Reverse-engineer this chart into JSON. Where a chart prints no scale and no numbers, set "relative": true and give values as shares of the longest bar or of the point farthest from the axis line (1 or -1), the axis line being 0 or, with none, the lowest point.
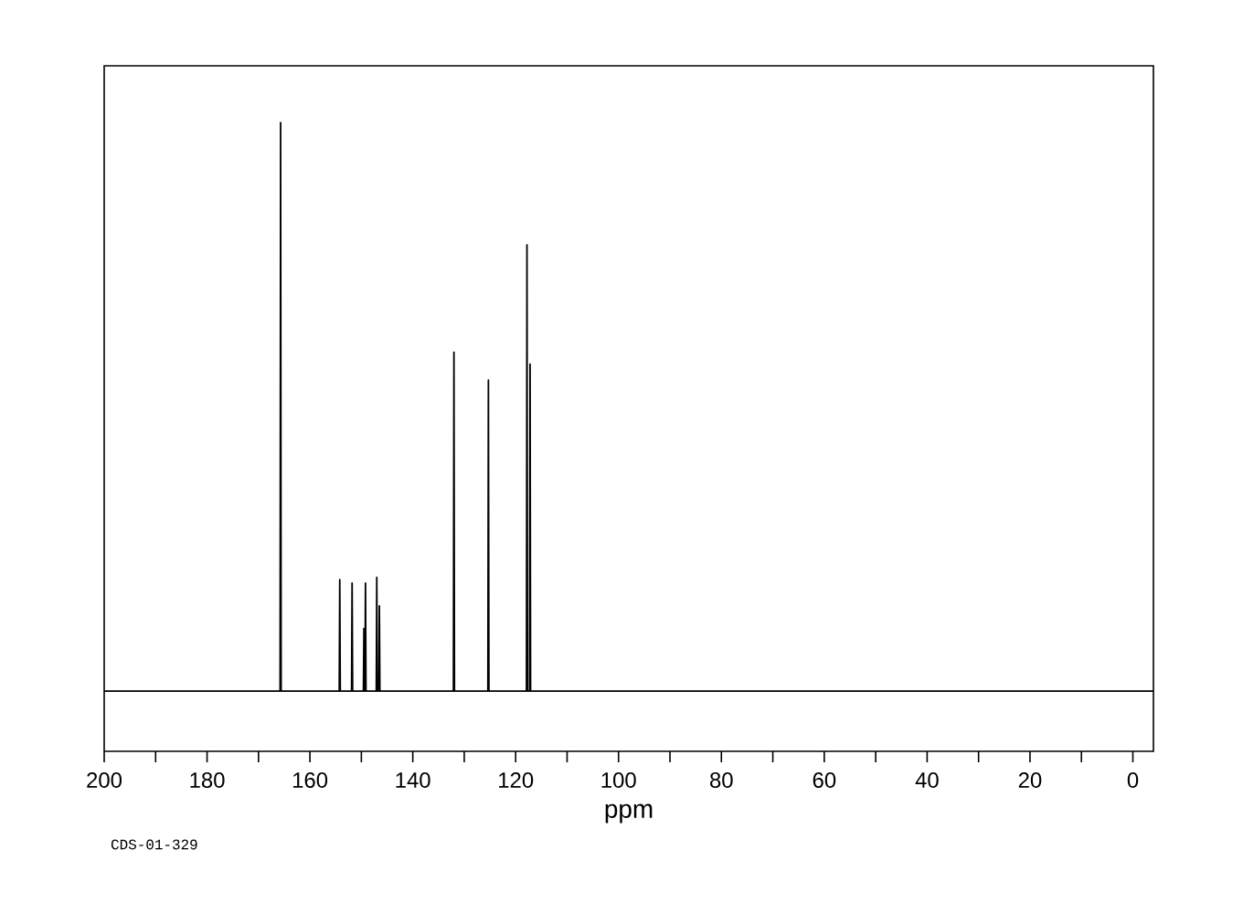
{
  "chart_data": {
    "type": "line",
    "relative": true,
    "xlabel": "ppm",
    "annotations": [
      "CDS-01-329"
    ],
    "tick_labels": "x",
    "color": "#000000",
    "xlim": [
      200,
      -4
    ],
    "xticks": [
      200,
      180,
      160,
      140,
      120,
      100,
      80,
      60,
      40,
      20,
      0
    ],
    "x": [
      200,
      165.8,
      165.7,
      165.6,
      154.3,
      154.2,
      154.1,
      151.9,
      151.8,
      151.7,
      149.6,
      149.5,
      149.4,
      149.3,
      149.2,
      149.1,
      147.1,
      147.0,
      146.9,
      146.6,
      146.5,
      146.4,
      132.1,
      132.0,
      131.9,
      125.4,
      125.3,
      125.2,
      117.9,
      117.8,
      117.7,
      117.3,
      117.2,
      117.1,
      -4
    ],
    "values": [
      0,
      0,
      1.0,
      0,
      0,
      0.196,
      0,
      0,
      0.19,
      0,
      0,
      0.11,
      0,
      0,
      0.19,
      0,
      0,
      0.2,
      0,
      0,
      0.15,
      0,
      0,
      0.596,
      0,
      0,
      0.547,
      0,
      0,
      0.785,
      0,
      0,
      0.575,
      0,
      0
    ]
  }
}
